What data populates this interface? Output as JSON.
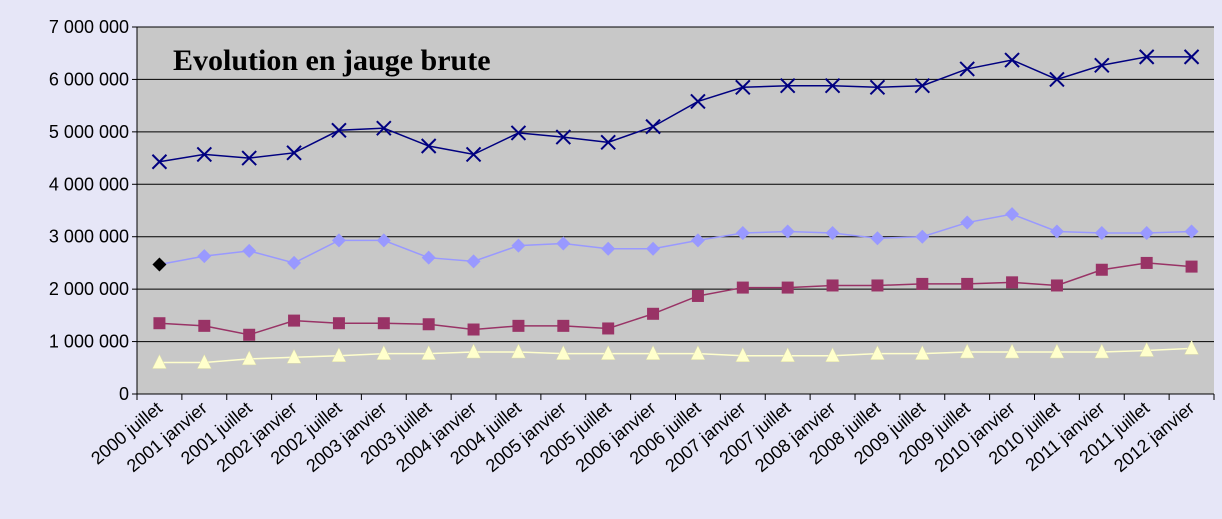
{
  "chart_data": {
    "type": "line",
    "title": "Evolution en jauge brute",
    "categories": [
      "2000 juillet",
      "2001 janvier",
      "2001 juillet",
      "2002 janvier",
      "2002 juillet",
      "2003 janvier",
      "2003 juillet",
      "2004 janvier",
      "2004 juillet",
      "2005 janvier",
      "2005 juillet",
      "2006 janvier",
      "2006 juillet",
      "2007 janvier",
      "2007 juillet",
      "2008 janvier",
      "2008 juillet",
      "2009 juillet",
      "2009 juillet",
      "2010 janvier",
      "2010 juillet",
      "2011 janvier",
      "2011 juillet",
      "2012 janvier"
    ],
    "series": [
      {
        "color": "#000080",
        "marker": "x",
        "values": [
          4430000,
          4570000,
          4500000,
          4600000,
          5030000,
          5070000,
          4730000,
          4570000,
          4980000,
          4900000,
          4800000,
          5100000,
          5580000,
          5850000,
          5880000,
          5880000,
          5850000,
          5880000,
          6200000,
          6370000,
          6000000,
          6270000,
          6430000,
          6430000
        ]
      },
      {
        "color": "#9999ff",
        "marker": "diamond",
        "highlight_point": {
          "index": 0,
          "color": "#000000"
        },
        "values": [
          2470000,
          2630000,
          2730000,
          2500000,
          2930000,
          2930000,
          2600000,
          2530000,
          2830000,
          2870000,
          2770000,
          2770000,
          2930000,
          3070000,
          3100000,
          3070000,
          2970000,
          3000000,
          3270000,
          3430000,
          3100000,
          3070000,
          3070000,
          3100000
        ]
      },
      {
        "color": "#993366",
        "marker": "square",
        "values": [
          1350000,
          1300000,
          1130000,
          1400000,
          1350000,
          1350000,
          1330000,
          1230000,
          1300000,
          1300000,
          1250000,
          1530000,
          1870000,
          2030000,
          2030000,
          2070000,
          2070000,
          2100000,
          2100000,
          2130000,
          2070000,
          2370000,
          2500000,
          2430000
        ]
      },
      {
        "color": "#ffffcc",
        "marker": "triangle",
        "values": [
          600000,
          600000,
          670000,
          700000,
          730000,
          770000,
          770000,
          800000,
          800000,
          770000,
          770000,
          770000,
          770000,
          730000,
          730000,
          730000,
          770000,
          770000,
          800000,
          800000,
          800000,
          800000,
          830000,
          870000
        ]
      }
    ],
    "ylim": [
      0,
      7000000
    ],
    "yticks": [
      {
        "value": 0,
        "label": "0"
      },
      {
        "value": 1000000,
        "label": "1 000 000"
      },
      {
        "value": 2000000,
        "label": "2 000 000"
      },
      {
        "value": 3000000,
        "label": "3 000 000"
      },
      {
        "value": 4000000,
        "label": "4 000 000"
      },
      {
        "value": 5000000,
        "label": "5 000 000"
      },
      {
        "value": 6000000,
        "label": "6 000 000"
      },
      {
        "value": 7000000,
        "label": "7 000 000"
      }
    ],
    "grid": true,
    "plot_background": "#c8c8c8"
  }
}
